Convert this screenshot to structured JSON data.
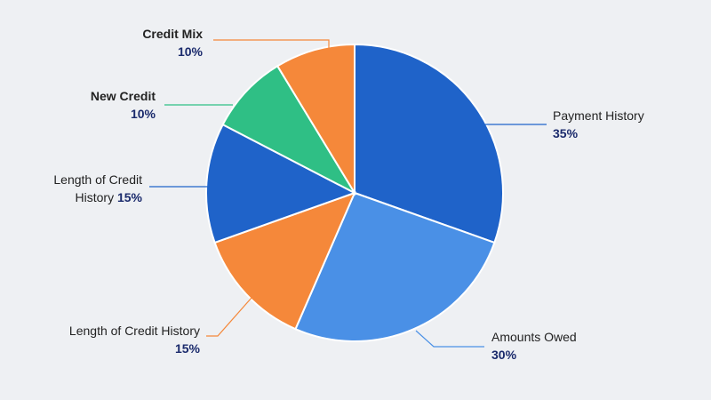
{
  "chart_data": {
    "type": "pie",
    "categories": [
      "Payment History",
      "Amounts Owed",
      "Length of Credit History",
      "Length of Credit History",
      "New Credit",
      "Credit Mix"
    ],
    "values": [
      35,
      30,
      15,
      15,
      10,
      10
    ],
    "value_labels": [
      "35%",
      "30%",
      "15%",
      "15%",
      "10%",
      "10%"
    ],
    "colors": [
      "#1f63c9",
      "#4a90e6",
      "#f5883a",
      "#1f63c9",
      "#2fbf85",
      "#f5883a"
    ]
  }
}
